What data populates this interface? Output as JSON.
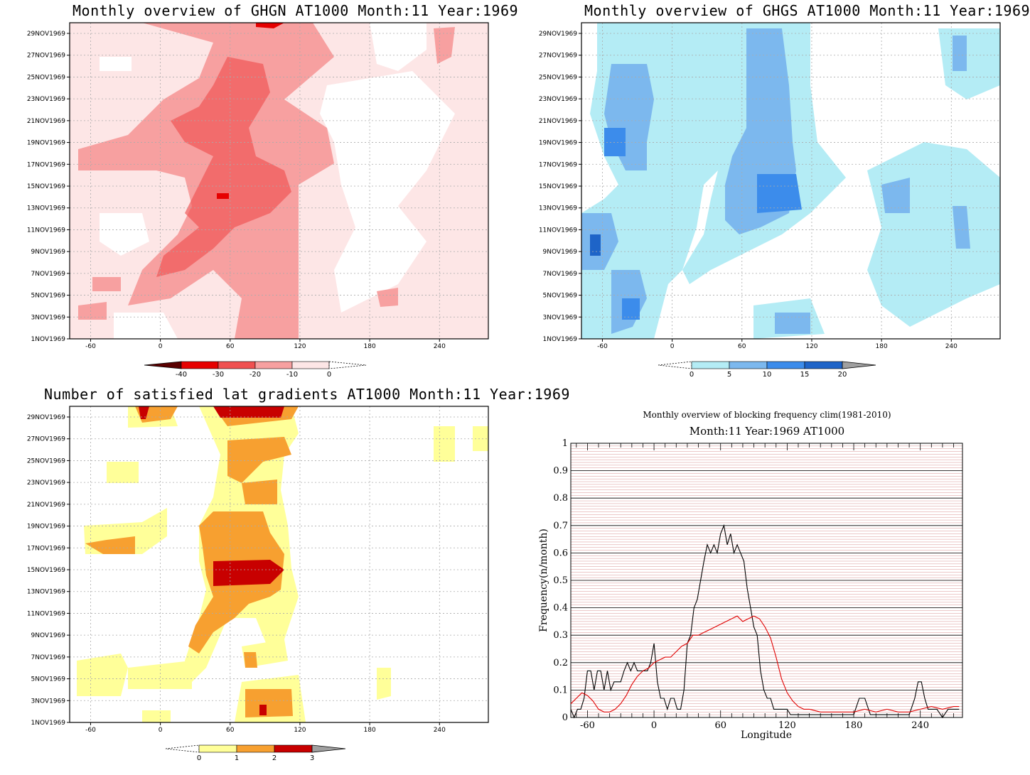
{
  "panels": {
    "ghgn": {
      "title": "Monthly overview of GHGN AT1000 Month:11 Year:1969",
      "colorbar": {
        "levels": [
          "-40",
          "-30",
          "-20",
          "-10",
          "0"
        ],
        "colors": [
          "#5a0000",
          "#e60000",
          "#f05050",
          "#f7a0a0",
          "#fde6e6"
        ]
      }
    },
    "ghgs": {
      "title": "Monthly overview of GHGS AT1000 Month:11 Year:1969",
      "colorbar": {
        "levels": [
          "0",
          "5",
          "10",
          "15",
          "20"
        ],
        "colors": [
          "#b4ecf5",
          "#7cb8ee",
          "#3c8ceb",
          "#1e64c8",
          "#a0a0a0"
        ]
      }
    },
    "lat": {
      "title": "Number of satisfied lat gradients AT1000 Month:11 Year:1969",
      "colorbar": {
        "levels": [
          "0",
          "1",
          "2",
          "3"
        ],
        "colors": [
          "#ffff99",
          "#f7a030",
          "#c80000",
          "#a0a0a0"
        ]
      }
    },
    "freq": {
      "title_line1": "Monthly overview of blocking frequency clim(1981-2010)",
      "title_line2": "Month:11 Year:1969  AT1000"
    }
  },
  "time_axis": [
    "1NOV1969",
    "3NOV1969",
    "5NOV1969",
    "7NOV1969",
    "9NOV1969",
    "11NOV1969",
    "13NOV1969",
    "15NOV1969",
    "17NOV1969",
    "19NOV1969",
    "21NOV1969",
    "23NOV1969",
    "25NOV1969",
    "27NOV1969",
    "29NOV1969"
  ],
  "lon_axis": [
    "-60",
    "0",
    "60",
    "120",
    "180",
    "240"
  ],
  "chart_data": [
    {
      "type": "heatmap",
      "title": "Monthly overview of GHGN AT1000 Month:11 Year:1969",
      "x_ticks": [
        -60,
        0,
        60,
        120,
        180,
        240
      ],
      "y_ticks": [
        "1NOV1969",
        "3NOV1969",
        "5NOV1969",
        "7NOV1969",
        "9NOV1969",
        "11NOV1969",
        "13NOV1969",
        "15NOV1969",
        "17NOV1969",
        "19NOV1969",
        "21NOV1969",
        "23NOV1969",
        "25NOV1969",
        "27NOV1969",
        "29NOV1969"
      ],
      "color_levels": [
        -40,
        -30,
        -20,
        -10,
        0
      ]
    },
    {
      "type": "heatmap",
      "title": "Monthly overview of GHGS AT1000 Month:11 Year:1969",
      "x_ticks": [
        -60,
        0,
        60,
        120,
        180,
        240
      ],
      "y_ticks": [
        "1NOV1969",
        "3NOV1969",
        "5NOV1969",
        "7NOV1969",
        "9NOV1969",
        "11NOV1969",
        "13NOV1969",
        "15NOV1969",
        "17NOV1969",
        "19NOV1969",
        "21NOV1969",
        "23NOV1969",
        "25NOV1969",
        "27NOV1969",
        "29NOV1969"
      ],
      "color_levels": [
        0,
        5,
        10,
        15,
        20
      ]
    },
    {
      "type": "heatmap",
      "title": "Number of satisfied lat gradients AT1000 Month:11 Year:1969",
      "x_ticks": [
        -60,
        0,
        60,
        120,
        180,
        240
      ],
      "y_ticks": [
        "1NOV1969",
        "3NOV1969",
        "5NOV1969",
        "7NOV1969",
        "9NOV1969",
        "11NOV1969",
        "13NOV1969",
        "15NOV1969",
        "17NOV1969",
        "19NOV1969",
        "21NOV1969",
        "23NOV1969",
        "25NOV1969",
        "27NOV1969",
        "29NOV1969"
      ],
      "color_levels": [
        0,
        1,
        2,
        3
      ]
    },
    {
      "type": "line",
      "title": "Monthly overview of blocking frequency clim(1981-2010)",
      "subtitle": "Month:11 Year:1969  AT1000",
      "xlabel": "Longitude",
      "ylabel": "Frequency(n/month)",
      "xlim": [
        -75,
        278
      ],
      "ylim": [
        0,
        1
      ],
      "x_ticks": [
        -60,
        0,
        60,
        120,
        180,
        240
      ],
      "y_ticks": [
        0,
        0.1,
        0.2,
        0.3,
        0.4,
        0.5,
        0.6,
        0.7,
        0.8,
        0.9,
        1
      ],
      "grid": true,
      "series": [
        {
          "color": "#000000",
          "x": [
            -75,
            -72,
            -69,
            -66,
            -63,
            -60,
            -57,
            -54,
            -51,
            -48,
            -45,
            -42,
            -39,
            -36,
            -33,
            -30,
            -27,
            -24,
            -21,
            -18,
            -15,
            -12,
            -9,
            -6,
            -3,
            0,
            3,
            6,
            9,
            12,
            15,
            18,
            21,
            24,
            27,
            30,
            33,
            36,
            39,
            42,
            45,
            48,
            51,
            54,
            57,
            60,
            63,
            66,
            69,
            72,
            75,
            78,
            81,
            84,
            87,
            90,
            93,
            96,
            99,
            102,
            105,
            108,
            111,
            114,
            117,
            120,
            123,
            126,
            129,
            132,
            135,
            138,
            141,
            144,
            147,
            150,
            160,
            170,
            180,
            185,
            190,
            195,
            200,
            210,
            220,
            230,
            235,
            238,
            241,
            244,
            247,
            250,
            255,
            260,
            265,
            270,
            275
          ],
          "y": [
            0.03,
            0.0,
            0.03,
            0.03,
            0.07,
            0.17,
            0.17,
            0.1,
            0.17,
            0.17,
            0.1,
            0.17,
            0.1,
            0.13,
            0.13,
            0.13,
            0.17,
            0.2,
            0.17,
            0.2,
            0.17,
            0.17,
            0.17,
            0.17,
            0.2,
            0.27,
            0.13,
            0.07,
            0.07,
            0.03,
            0.07,
            0.07,
            0.03,
            0.03,
            0.1,
            0.27,
            0.3,
            0.4,
            0.43,
            0.5,
            0.57,
            0.63,
            0.6,
            0.63,
            0.6,
            0.67,
            0.7,
            0.63,
            0.67,
            0.6,
            0.63,
            0.6,
            0.57,
            0.47,
            0.4,
            0.33,
            0.3,
            0.17,
            0.1,
            0.07,
            0.07,
            0.03,
            0.03,
            0.03,
            0.03,
            0.03,
            0.01,
            0.01,
            0.01,
            0.01,
            0.01,
            0.01,
            0.01,
            0.01,
            0.01,
            0.01,
            0.01,
            0.01,
            0.01,
            0.07,
            0.07,
            0.01,
            0.01,
            0.01,
            0.01,
            0.01,
            0.07,
            0.13,
            0.13,
            0.07,
            0.03,
            0.03,
            0.03,
            0.0,
            0.03,
            0.03,
            0.03
          ]
        },
        {
          "color": "#e00000",
          "x": [
            -75,
            -70,
            -65,
            -60,
            -55,
            -50,
            -45,
            -40,
            -35,
            -30,
            -25,
            -20,
            -15,
            -10,
            -5,
            0,
            5,
            10,
            15,
            20,
            25,
            30,
            35,
            40,
            45,
            50,
            55,
            60,
            65,
            70,
            75,
            80,
            85,
            90,
            95,
            100,
            105,
            110,
            115,
            120,
            125,
            130,
            135,
            140,
            150,
            160,
            170,
            180,
            190,
            200,
            210,
            220,
            230,
            240,
            250,
            260,
            270,
            275
          ],
          "y": [
            0.05,
            0.07,
            0.09,
            0.08,
            0.06,
            0.03,
            0.02,
            0.02,
            0.03,
            0.05,
            0.08,
            0.12,
            0.15,
            0.17,
            0.18,
            0.2,
            0.21,
            0.22,
            0.22,
            0.24,
            0.26,
            0.27,
            0.3,
            0.3,
            0.31,
            0.32,
            0.33,
            0.34,
            0.35,
            0.36,
            0.37,
            0.35,
            0.36,
            0.37,
            0.36,
            0.33,
            0.29,
            0.22,
            0.14,
            0.09,
            0.06,
            0.04,
            0.03,
            0.03,
            0.02,
            0.02,
            0.02,
            0.02,
            0.03,
            0.02,
            0.03,
            0.02,
            0.02,
            0.03,
            0.04,
            0.03,
            0.04,
            0.04
          ]
        }
      ]
    }
  ]
}
